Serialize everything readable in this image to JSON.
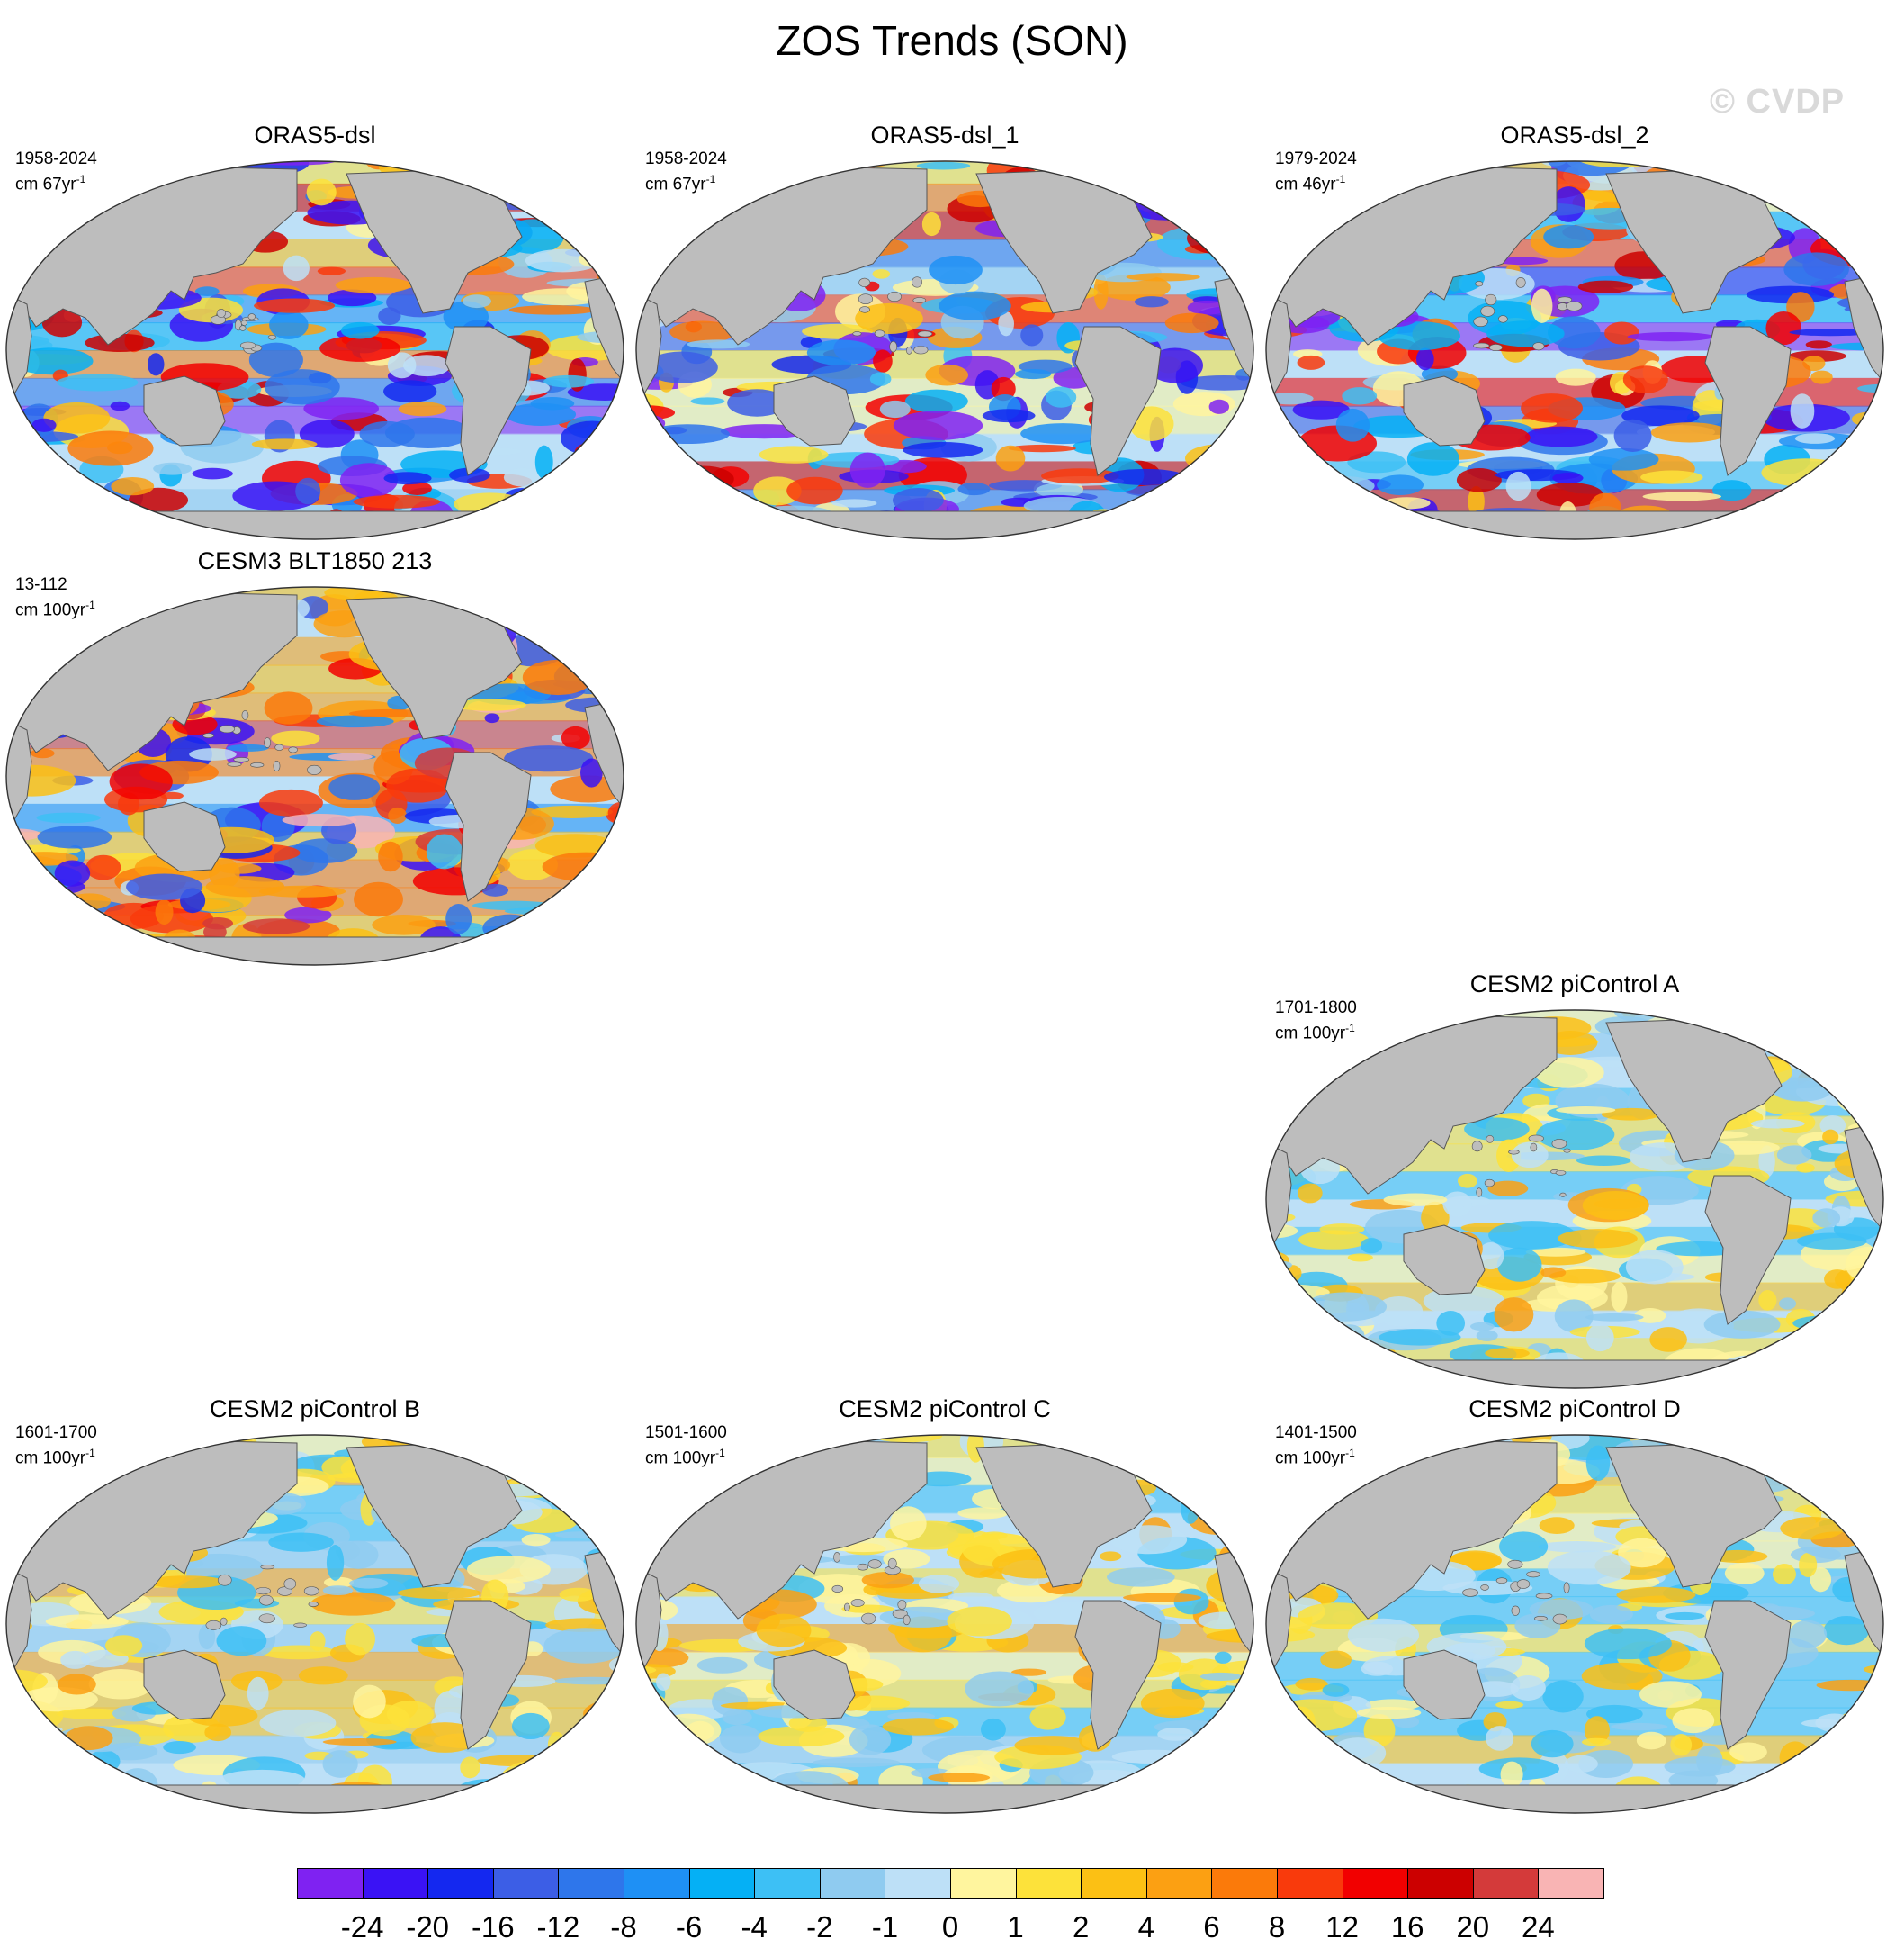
{
  "figure": {
    "title": "ZOS Trends (SON)",
    "watermark": "© CVDP"
  },
  "panels": [
    {
      "id": "p1",
      "title": "ORAS5-dsl",
      "period": "1958-2024",
      "unit_base": "cm 67yr",
      "unit_exp": "-1",
      "palette": "strong_mixed"
    },
    {
      "id": "p2",
      "title": "ORAS5-dsl_1",
      "period": "1958-2024",
      "unit_base": "cm 67yr",
      "unit_exp": "-1",
      "palette": "strong_mixed"
    },
    {
      "id": "p3",
      "title": "ORAS5-dsl_2",
      "period": "1979-2024",
      "unit_base": "cm 46yr",
      "unit_exp": "-1",
      "palette": "strong_mixed"
    },
    {
      "id": "p4",
      "title": "CESM3 BLT1850 213",
      "period": "13-112",
      "unit_base": "cm 100yr",
      "unit_exp": "-1",
      "palette": "strong_warm"
    },
    {
      "id": "p5",
      "title": "CESM2 piControl A",
      "period": "1701-1800",
      "unit_base": "cm 100yr",
      "unit_exp": "-1",
      "palette": "weak"
    },
    {
      "id": "p6",
      "title": "CESM2 piControl B",
      "period": "1601-1700",
      "unit_base": "cm 100yr",
      "unit_exp": "-1",
      "palette": "weak"
    },
    {
      "id": "p7",
      "title": "CESM2 piControl C",
      "period": "1501-1600",
      "unit_base": "cm 100yr",
      "unit_exp": "-1",
      "palette": "weak"
    },
    {
      "id": "p8",
      "title": "CESM2 piControl D",
      "period": "1401-1500",
      "unit_base": "cm 100yr",
      "unit_exp": "-1",
      "palette": "weak"
    }
  ],
  "colorbar": {
    "labels": [
      "-24",
      "-20",
      "-16",
      "-12",
      "-8",
      "-6",
      "-4",
      "-2",
      "-1",
      "0",
      "1",
      "2",
      "4",
      "6",
      "8",
      "12",
      "16",
      "20",
      "24"
    ],
    "colors": [
      "#7f22f2",
      "#3a12f5",
      "#1428f0",
      "#3c5ee6",
      "#2e76eb",
      "#1e90f5",
      "#05b0f5",
      "#3dc0f5",
      "#8fcbf0",
      "#bde0f7",
      "#fff59e",
      "#fde23a",
      "#fcc014",
      "#fca012",
      "#fb7a0a",
      "#f93a0c",
      "#f20000",
      "#cc0000",
      "#d43a3a",
      "#f9b4b4"
    ],
    "land_color": "#bdbdbd"
  }
}
